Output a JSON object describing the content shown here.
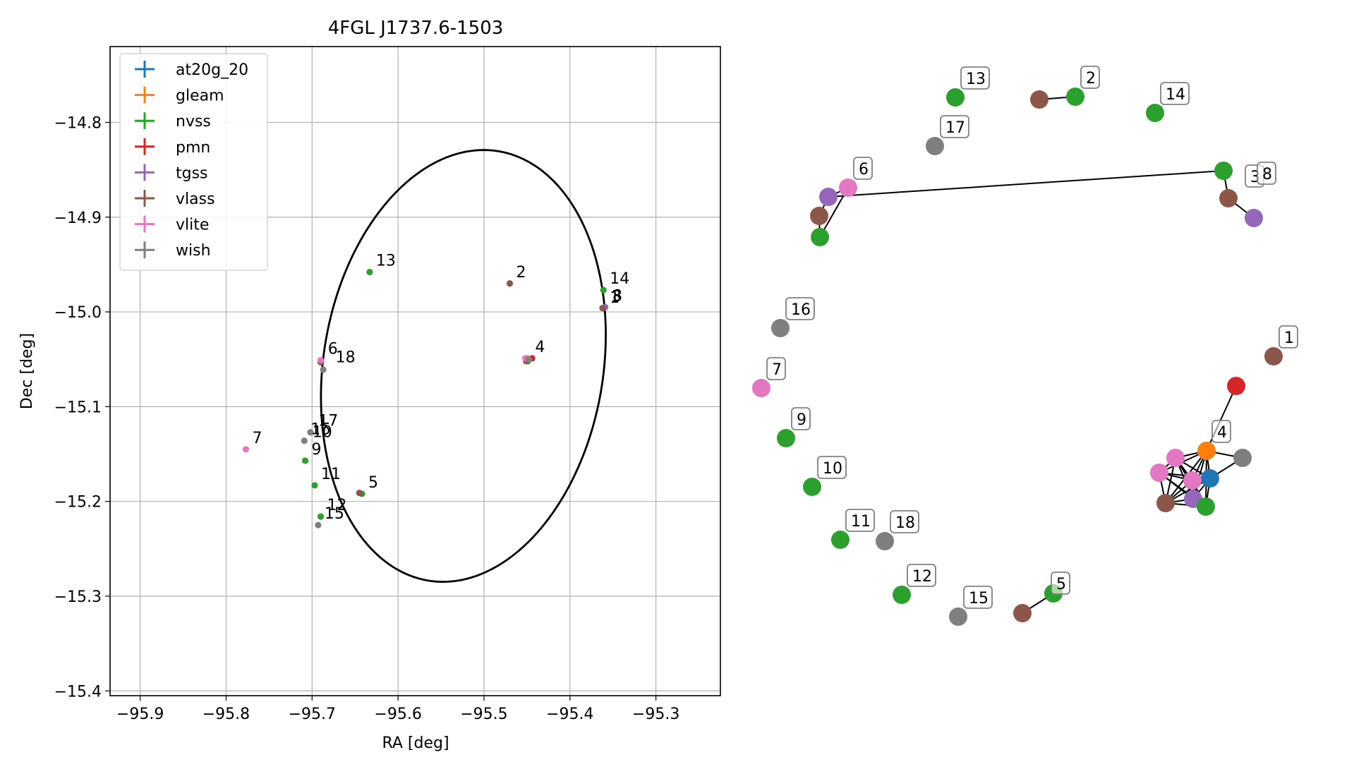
{
  "chart_data": [
    {
      "type": "scatter",
      "title": "4FGL J1737.6-1503",
      "xlabel": "RA [deg]",
      "ylabel": "Dec [deg]",
      "xlim": [
        -95.935,
        -95.225
      ],
      "ylim": [
        -15.405,
        -14.72
      ],
      "x_ticks": [
        -95.9,
        -95.8,
        -95.7,
        -95.6,
        -95.5,
        -95.4,
        -95.3
      ],
      "y_ticks": [
        -14.8,
        -14.9,
        -15.0,
        -15.1,
        -15.2,
        -15.3,
        -15.4
      ],
      "x_tick_labels": [
        "−95.9",
        "−95.8",
        "−95.7",
        "−95.6",
        "−95.5",
        "−95.4",
        "−95.3"
      ],
      "y_tick_labels": [
        "−14.8",
        "−14.9",
        "−15.0",
        "−15.1",
        "−15.2",
        "−15.3",
        "−15.4"
      ],
      "grid": true,
      "legend_position": "top-left",
      "ellipse": {
        "center": [
          -95.524,
          -15.057
        ],
        "semi_major_deg": 0.2303,
        "semi_minor_deg": 0.1622,
        "angle_deg": 78.1,
        "color": "#000000"
      },
      "series": [
        {
          "name": "at20g_20",
          "color": "#1f77b4",
          "points": [
            [
              -95.449,
              -15.051
            ]
          ]
        },
        {
          "name": "gleam",
          "color": "#ff7f0e",
          "points": [
            [
              -95.45,
              -15.049
            ]
          ]
        },
        {
          "name": "nvss",
          "color": "#2ca02c",
          "points": [
            [
              -95.633,
              -14.958
            ],
            [
              -95.449,
              -15.052
            ],
            [
              -95.708,
              -15.157
            ],
            [
              -95.697,
              -15.183
            ],
            [
              -95.69,
              -15.216
            ],
            [
              -95.642,
              -15.192
            ],
            [
              -95.361,
              -14.977
            ],
            [
              -95.362,
              -14.996
            ]
          ]
        },
        {
          "name": "pmn",
          "color": "#d62728",
          "points": [
            [
              -95.444,
              -15.049
            ]
          ]
        },
        {
          "name": "tgss",
          "color": "#9467bd",
          "points": [
            [
              -95.45,
              -15.051
            ],
            [
              -95.69,
              -15.052
            ],
            [
              -95.359,
              -14.995
            ]
          ]
        },
        {
          "name": "vlass",
          "color": "#8c564b",
          "points": [
            [
              -95.47,
              -14.97
            ],
            [
              -95.451,
              -15.052
            ],
            [
              -95.645,
              -15.191
            ],
            [
              -95.69,
              -15.053
            ],
            [
              -95.362,
              -14.996
            ]
          ]
        },
        {
          "name": "vlite",
          "color": "#e377c2",
          "points": [
            [
              -95.777,
              -15.145
            ],
            [
              -95.69,
              -15.051
            ],
            [
              -95.452,
              -15.049
            ]
          ]
        },
        {
          "name": "wish",
          "color": "#7f7f7f",
          "points": [
            [
              -95.687,
              -15.061
            ],
            [
              -95.702,
              -15.127
            ],
            [
              -95.709,
              -15.136
            ],
            [
              -95.693,
              -15.225
            ],
            [
              -95.448,
              -15.05
            ]
          ]
        }
      ],
      "annotations": [
        {
          "text": "13",
          "x": -95.633,
          "y": -14.958
        },
        {
          "text": "2",
          "x": -95.47,
          "y": -14.97
        },
        {
          "text": "14",
          "x": -95.361,
          "y": -14.977
        },
        {
          "text": "8",
          "x": -95.358,
          "y": -14.995
        },
        {
          "text": "3",
          "x": -95.359,
          "y": -14.996
        },
        {
          "text": "1",
          "x": -95.361,
          "y": -14.997
        },
        {
          "text": "4",
          "x": -95.448,
          "y": -15.049
        },
        {
          "text": "6",
          "x": -95.689,
          "y": -15.051
        },
        {
          "text": "18",
          "x": -95.68,
          "y": -15.06
        },
        {
          "text": "17",
          "x": -95.7,
          "y": -15.127
        },
        {
          "text": "16",
          "x": -95.709,
          "y": -15.136
        },
        {
          "text": "10",
          "x": -95.707,
          "y": -15.139
        },
        {
          "text": "7",
          "x": -95.777,
          "y": -15.145
        },
        {
          "text": "9",
          "x": -95.708,
          "y": -15.157
        },
        {
          "text": "11",
          "x": -95.697,
          "y": -15.183
        },
        {
          "text": "5",
          "x": -95.642,
          "y": -15.192
        },
        {
          "text": "12",
          "x": -95.69,
          "y": -15.216
        },
        {
          "text": "15",
          "x": -95.693,
          "y": -15.225
        }
      ]
    },
    {
      "type": "network",
      "nodes": [
        {
          "color": "#7f7f7f",
          "label": ""
        },
        {
          "color": "#ff7f0e",
          "label": "4"
        },
        {
          "color": "#1f77b4",
          "label": ""
        },
        {
          "color": "#d62728",
          "label": ""
        },
        {
          "color": "#e377c2",
          "label": ""
        },
        {
          "color": "#e377c2",
          "label": ""
        },
        {
          "color": "#e377c2",
          "label": ""
        },
        {
          "color": "#8c564b",
          "label": ""
        },
        {
          "color": "#9467bd",
          "label": ""
        },
        {
          "color": "#2ca02c",
          "label": ""
        },
        {
          "color": "#8c564b",
          "label": "1"
        },
        {
          "color": "#2ca02c",
          "label": "13"
        },
        {
          "color": "#8c564b",
          "label": ""
        },
        {
          "color": "#2ca02c",
          "label": "2"
        },
        {
          "color": "#2ca02c",
          "label": "14"
        },
        {
          "color": "#7f7f7f",
          "label": "17"
        },
        {
          "color": "#2ca02c",
          "label": ""
        },
        {
          "color": "#8c564b",
          "label": ""
        },
        {
          "color": "#9467bd",
          "label": ""
        },
        {
          "color": "#9467bd",
          "label": ""
        },
        {
          "color": "#e377c2",
          "label": "6"
        },
        {
          "color": "#8c564b",
          "label": ""
        },
        {
          "color": "#2ca02c",
          "label": ""
        },
        {
          "color": "#7f7f7f",
          "label": "16"
        },
        {
          "color": "#e377c2",
          "label": "7"
        },
        {
          "color": "#2ca02c",
          "label": "9"
        },
        {
          "color": "#2ca02c",
          "label": "10"
        },
        {
          "color": "#2ca02c",
          "label": "11"
        },
        {
          "color": "#7f7f7f",
          "label": "18"
        },
        {
          "color": "#2ca02c",
          "label": "12"
        },
        {
          "color": "#7f7f7f",
          "label": "15"
        },
        {
          "color": "#8c564b",
          "label": ""
        },
        {
          "color": "#2ca02c",
          "label": ""
        }
      ],
      "edges": [
        [
          0,
          1
        ],
        [
          0,
          2
        ],
        [
          1,
          2
        ],
        [
          1,
          3
        ],
        [
          1,
          4
        ],
        [
          1,
          5
        ],
        [
          1,
          6
        ],
        [
          1,
          7
        ],
        [
          1,
          8
        ],
        [
          1,
          9
        ],
        [
          2,
          4
        ],
        [
          2,
          5
        ],
        [
          2,
          6
        ],
        [
          2,
          7
        ],
        [
          2,
          8
        ],
        [
          2,
          9
        ],
        [
          4,
          5
        ],
        [
          4,
          6
        ],
        [
          4,
          7
        ],
        [
          4,
          8
        ],
        [
          4,
          9
        ],
        [
          5,
          6
        ],
        [
          5,
          7
        ],
        [
          5,
          8
        ],
        [
          5,
          9
        ],
        [
          6,
          7
        ],
        [
          6,
          8
        ],
        [
          6,
          9
        ],
        [
          7,
          8
        ],
        [
          7,
          9
        ],
        [
          8,
          9
        ],
        [
          12,
          13
        ],
        [
          16,
          17
        ],
        [
          17,
          18
        ],
        [
          16,
          19
        ],
        [
          19,
          20
        ],
        [
          19,
          21
        ],
        [
          20,
          22
        ],
        [
          21,
          22
        ],
        [
          31,
          32
        ]
      ],
      "extra_labels": [
        "3",
        "8",
        "5"
      ]
    }
  ]
}
